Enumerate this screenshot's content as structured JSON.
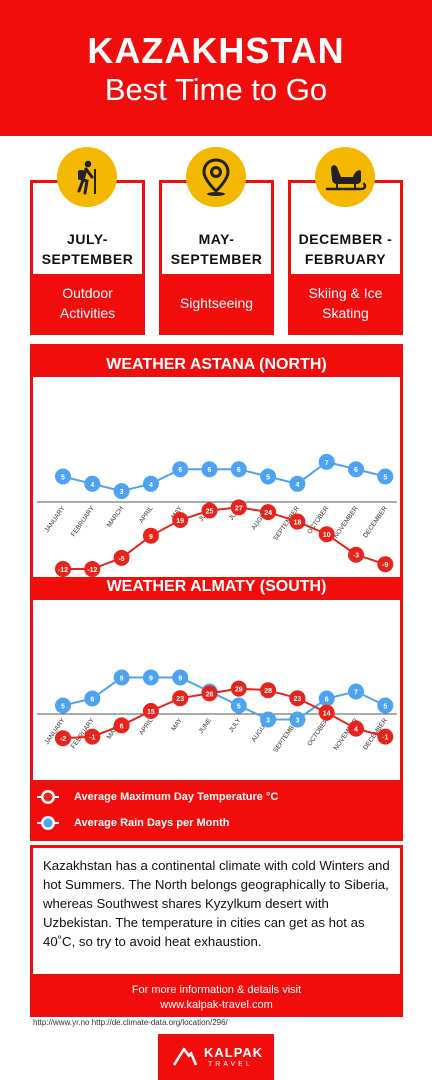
{
  "header": {
    "title": "KAZAKHSTAN",
    "subtitle": "Best Time to Go"
  },
  "seasons": [
    {
      "icon": "hiker-icon",
      "period_line1": "JULY-",
      "period_line2": "SEPTEMBER",
      "activity_line1": "Outdoor",
      "activity_line2": "Activities"
    },
    {
      "icon": "map-pin-icon",
      "period_line1": "MAY-",
      "period_line2": "SEPTEMBER",
      "activity_line1": "Sightseeing",
      "activity_line2": ""
    },
    {
      "icon": "sleigh-icon",
      "period_line1": "DECEMBER -",
      "period_line2": "FEBRUARY",
      "activity_line1": "Skiing & Ice",
      "activity_line2": "Skating"
    }
  ],
  "colors": {
    "brand_red": "#f20d0d",
    "temp_line": "#e8231c",
    "rain_line": "#4da3f2",
    "icon_circle": "#f5b800"
  },
  "legend": {
    "temperature": "Average Maximum Day Temperature °C",
    "rain": "Average Rain Days per Month"
  },
  "chart_data": [
    {
      "type": "line",
      "title": "WEATHER ASTANA (NORTH)",
      "categories": [
        "JANUARY",
        "FEBRUARY",
        "MARCH",
        "APRIL",
        "MAY",
        "JUNE",
        "JULY",
        "AUGUST",
        "SEPTEMBER",
        "OCTOBER",
        "NOVEMBER",
        "DECEMBER"
      ],
      "series": [
        {
          "name": "Average Maximum Day Temperature °C",
          "values": [
            -12,
            -12,
            -5,
            9,
            19,
            25,
            27,
            24,
            18,
            10,
            -3,
            -9
          ]
        },
        {
          "name": "Average Rain Days per Month",
          "values": [
            5,
            4,
            3,
            4,
            6,
            6,
            6,
            5,
            4,
            7,
            6,
            5
          ]
        }
      ]
    },
    {
      "type": "line",
      "title": "WEATHER ALMATY (SOUTH)",
      "categories": [
        "JANUARY",
        "FEBRUARY",
        "MARCH",
        "APRIL",
        "MAY",
        "JUNE",
        "JULY",
        "AUGUST",
        "SEPTEMBER",
        "OCTOBER",
        "NOVEMBER",
        "DECEMBER"
      ],
      "series": [
        {
          "name": "Average Maximum Day Temperature °C",
          "values": [
            -2,
            -1,
            6,
            15,
            23,
            26,
            29,
            28,
            23,
            14,
            4,
            -1
          ]
        },
        {
          "name": "Average Rain Days per Month",
          "values": [
            5,
            6,
            9,
            9,
            9,
            7,
            5,
            3,
            3,
            6,
            7,
            5
          ]
        }
      ]
    }
  ],
  "info": {
    "text": "Kazakhstan has a continental climate with cold Winters and hot Summers. The North belongs geographically to Siberia, whereas Southwest shares Kyzylkum desert with Uzbekistan. The temperature in cities can get as hot as 40˚C, so try to avoid heat exhaustion.",
    "more_line1": "For more information & details visit",
    "more_line2": "www.kalpak-travel.com"
  },
  "sources": "http://www.yr.no   http://de.climate-data.org/location/296/",
  "logo": {
    "name": "KALPAK",
    "tagline": "TRAVEL"
  }
}
